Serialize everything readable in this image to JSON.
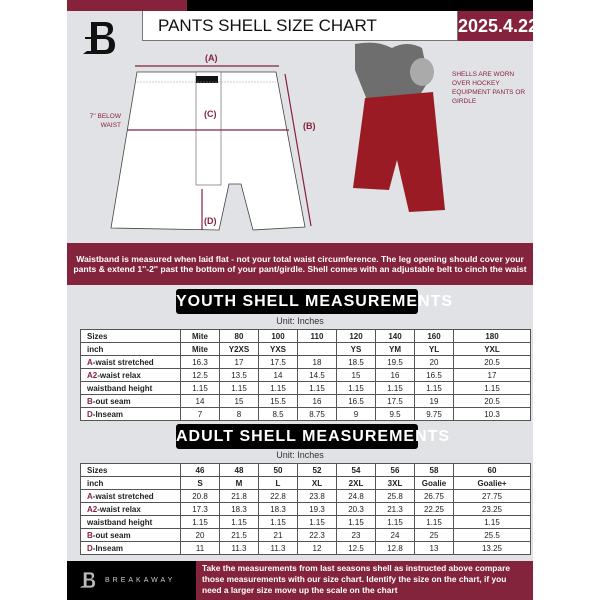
{
  "header": {
    "title": "PANTS SHELL SIZE CHART",
    "date": "2025.4.22"
  },
  "diagram": {
    "label_a": "(A)",
    "label_b": "(B)",
    "label_c": "(C)",
    "label_d": "(D)",
    "waist_note": "7'' BELOW WAIST",
    "worn_note": "SHELLS ARE WORN OVER HOCKEY EQUIPMENT PANTS OR GIRDLE"
  },
  "colors": {
    "accent": "#87223d",
    "background": "#e1e2e5",
    "shell": "#9b1b24"
  },
  "band_text": "Waistband is measured when laid flat - not your total waist circumference. The leg opening should cover your pants & extend 1''-2'' past the bottom of your pant/girdle. Shell comes with an adjustable belt to cinch the waist",
  "youth": {
    "title": "YOUTH SHELL MEASUREMENTS",
    "unit": "Unit: Inches",
    "rows": [
      {
        "prefix": "",
        "label": "Sizes",
        "values": [
          "Mite",
          "80",
          "100",
          "110",
          "120",
          "140",
          "160",
          "180"
        ]
      },
      {
        "prefix": "",
        "label": "inch",
        "values": [
          "Mite",
          "Y2XS",
          "YXS",
          "",
          "YS",
          "YM",
          "YL",
          "YXL"
        ]
      },
      {
        "prefix": "A",
        "label": "-waist stretched",
        "values": [
          "16.3",
          "17",
          "17.5",
          "18",
          "18.5",
          "19.5",
          "20",
          "20.5"
        ]
      },
      {
        "prefix": "A2",
        "label": "-waist relax",
        "values": [
          "12.5",
          "13.5",
          "14",
          "14.5",
          "15",
          "16",
          "16.5",
          "17"
        ]
      },
      {
        "prefix": "",
        "label": "waistband height",
        "values": [
          "1.15",
          "1.15",
          "1.15",
          "1.15",
          "1.15",
          "1.15",
          "1.15",
          "1.15"
        ]
      },
      {
        "prefix": "B",
        "label": "-out seam",
        "values": [
          "14",
          "15",
          "15.5",
          "16",
          "16.5",
          "17.5",
          "19",
          "20.5"
        ]
      },
      {
        "prefix": "D",
        "label": "-Inseam",
        "values": [
          "7",
          "8",
          "8.5",
          "8.75",
          "9",
          "9.5",
          "9.75",
          "10.3"
        ]
      }
    ]
  },
  "adult": {
    "title": "ADULT SHELL MEASUREMENTS",
    "unit": "Unit: Inches",
    "rows": [
      {
        "prefix": "",
        "label": "Sizes",
        "values": [
          "46",
          "48",
          "50",
          "52",
          "54",
          "56",
          "58",
          "60"
        ]
      },
      {
        "prefix": "",
        "label": "inch",
        "values": [
          "S",
          "M",
          "L",
          "XL",
          "2XL",
          "3XL",
          "Goalie",
          "Goalie+"
        ]
      },
      {
        "prefix": "A",
        "label": "-waist stretched",
        "values": [
          "20.8",
          "21.8",
          "22.8",
          "23.8",
          "24.8",
          "25.8",
          "26.75",
          "27.75"
        ]
      },
      {
        "prefix": "A2",
        "label": "-waist relax",
        "values": [
          "17.3",
          "18.3",
          "18.3",
          "19.3",
          "20.3",
          "21.3",
          "22.25",
          "23.25"
        ]
      },
      {
        "prefix": "",
        "label": "waistband height",
        "values": [
          "1.15",
          "1.15",
          "1.15",
          "1.15",
          "1.15",
          "1.15",
          "1.15",
          "1.15"
        ]
      },
      {
        "prefix": "B",
        "label": "-out seam",
        "values": [
          "20",
          "21.5",
          "21",
          "22.3",
          "23",
          "24",
          "25",
          "25.5"
        ]
      },
      {
        "prefix": "D",
        "label": "-Inseam",
        "values": [
          "11",
          "11.3",
          "11.3",
          "12",
          "12.5",
          "12.8",
          "13",
          "13.25"
        ]
      }
    ]
  },
  "footer": {
    "brand": "BREAKAWAY",
    "text": "Take the measurements from last seasons shell as instructed above compare those measurements  with our size chart. Identify the size on the chart, if you need a larger size move up the scale on the chart"
  }
}
